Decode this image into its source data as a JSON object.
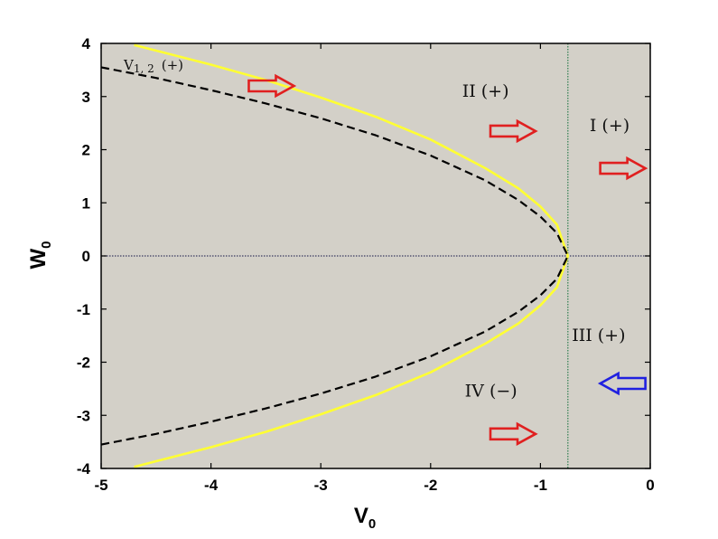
{
  "chart_data": {
    "type": "line",
    "xlabel": {
      "main": "V",
      "sub": "0"
    },
    "ylabel": {
      "main": "W",
      "sub": "0"
    },
    "xlim": [
      -5,
      0
    ],
    "ylim": [
      -4,
      4
    ],
    "xticks": [
      -5,
      -4,
      -3,
      -2,
      -1,
      0
    ],
    "yticks": [
      4,
      3,
      2,
      1,
      0,
      -1,
      -2,
      -3,
      -4
    ],
    "grid": false,
    "background_color": "#d3d0c8",
    "vertical_line": {
      "x": -0.75,
      "color": "#2e7d4f"
    },
    "horizontal_line": {
      "y": 0,
      "color": "#3a3a60"
    },
    "series": [
      {
        "style": "solid",
        "color": "#ffff33",
        "x": [
          -4.7,
          -4.0,
          -3.5,
          -3.0,
          -2.5,
          -2.0,
          -1.5,
          -1.2,
          -1.0,
          -0.85,
          -0.75,
          -0.85,
          -1.0,
          -1.2,
          -1.5,
          -2.0,
          -2.5,
          -3.0,
          -3.5,
          -4.0,
          -4.7
        ],
        "y": [
          3.97,
          3.6,
          3.31,
          2.98,
          2.62,
          2.19,
          1.65,
          1.27,
          0.93,
          0.59,
          0.0,
          -0.59,
          -0.93,
          -1.27,
          -1.65,
          -2.19,
          -2.62,
          -2.98,
          -3.31,
          -3.6,
          -3.97
        ]
      },
      {
        "style": "dashed",
        "color": "#000000",
        "label_main": "V",
        "label_sub": "1, 2",
        "label_sign": "(+)",
        "x": [
          -5.0,
          -4.5,
          -4.0,
          -3.5,
          -3.0,
          -2.5,
          -2.0,
          -1.5,
          -1.2,
          -1.0,
          -0.85,
          -0.75,
          -0.85,
          -1.0,
          -1.2,
          -1.5,
          -2.0,
          -2.5,
          -3.0,
          -3.5,
          -4.0,
          -4.5,
          -5.0
        ],
        "y": [
          3.55,
          3.35,
          3.12,
          2.87,
          2.59,
          2.27,
          1.89,
          1.42,
          1.05,
          0.74,
          0.43,
          0.0,
          -0.43,
          -0.74,
          -1.05,
          -1.42,
          -1.89,
          -2.27,
          -2.59,
          -2.87,
          -3.12,
          -3.35,
          -3.55
        ]
      }
    ],
    "annotations": [
      {
        "text": "II (+)",
        "x": -1.5,
        "y": 3.0
      },
      {
        "text": "I (+)",
        "x": -0.37,
        "y": 2.35
      },
      {
        "text": "III (+)",
        "x": -0.47,
        "y": -1.6
      },
      {
        "text": "IV (−)",
        "x": -1.45,
        "y": -2.65
      }
    ],
    "arrows": [
      {
        "x": -3.45,
        "y": 3.2,
        "direction": "right",
        "color": "#e02020"
      },
      {
        "x": -1.25,
        "y": 2.35,
        "direction": "right",
        "color": "#e02020"
      },
      {
        "x": -0.25,
        "y": 1.65,
        "direction": "right",
        "color": "#e02020"
      },
      {
        "x": -0.25,
        "y": -2.4,
        "direction": "left",
        "color": "#2020e0"
      },
      {
        "x": -1.25,
        "y": -3.35,
        "direction": "right",
        "color": "#e02020"
      }
    ]
  }
}
